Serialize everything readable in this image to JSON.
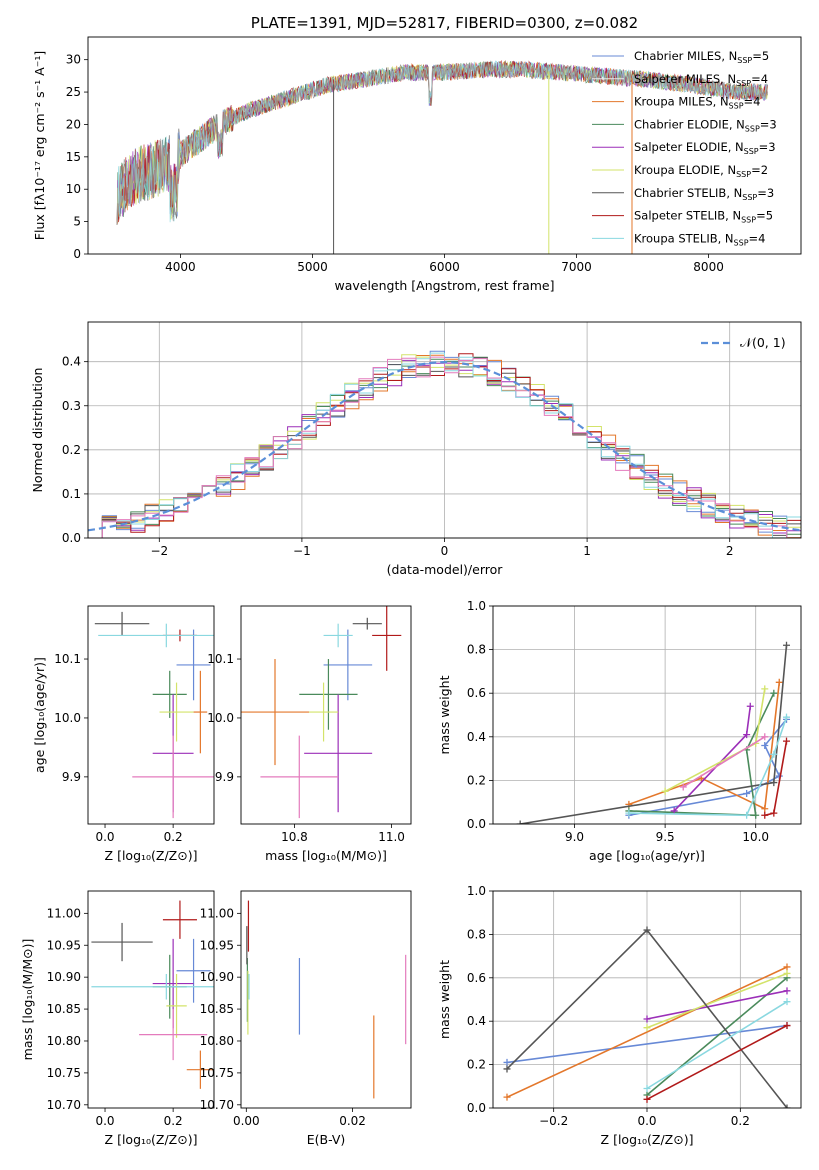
{
  "chart_data": [
    {
      "id": "spectrum",
      "type": "line",
      "title": "PLATE=1391, MJD=52817, FIBERID=0300, z=0.082",
      "xlabel": "wavelength [Angstrom, rest frame]",
      "ylabel": "Flux [fλ10⁻¹⁷ erg cm⁻² s⁻¹ A⁻¹]",
      "xlim": [
        3300,
        8700
      ],
      "ylim": [
        0,
        33.5
      ],
      "xticks": [
        4000,
        5000,
        6000,
        7000,
        8000
      ],
      "yticks": [
        0,
        5,
        10,
        15,
        20,
        25,
        30
      ],
      "grid": false,
      "legend_position": "upper-right",
      "legend": [
        {
          "label": "Chabrier MILES, N",
          "sub": "SSP",
          "tail": "=5",
          "color": "#6789d6"
        },
        {
          "label": "Salpeter MILES, N",
          "sub": "SSP",
          "tail": "=4",
          "color": "#e7e7e7"
        },
        {
          "label": "Kroupa MILES, N",
          "sub": "SSP",
          "tail": "=4",
          "color": "#e3772b"
        },
        {
          "label": "Chabrier ELODIE, N",
          "sub": "SSP",
          "tail": "=3",
          "color": "#4a8a5b"
        },
        {
          "label": "Salpeter ELODIE, N",
          "sub": "SSP",
          "tail": "=3",
          "color": "#9b2fb8"
        },
        {
          "label": "Kroupa ELODIE, N",
          "sub": "SSP",
          "tail": "=2",
          "color": "#d3e36a"
        },
        {
          "label": "Chabrier STELIB, N",
          "sub": "SSP",
          "tail": "=3",
          "color": "#555555"
        },
        {
          "label": "Salpeter STELIB, N",
          "sub": "SSP",
          "tail": "=5",
          "color": "#b11a1a"
        },
        {
          "label": "Kroupa STELIB, N",
          "sub": "SSP",
          "tail": "=4",
          "color": "#8ad8e0"
        }
      ],
      "continuum": [
        [
          3520,
          9
        ],
        [
          3650,
          12
        ],
        [
          3800,
          13
        ],
        [
          3950,
          14.5
        ],
        [
          4100,
          17
        ],
        [
          4300,
          20
        ],
        [
          4500,
          22
        ],
        [
          4800,
          24
        ],
        [
          5100,
          26
        ],
        [
          5400,
          27
        ],
        [
          5700,
          28
        ],
        [
          6000,
          28
        ],
        [
          6300,
          28.5
        ],
        [
          6600,
          28.5
        ],
        [
          6900,
          28
        ],
        [
          7200,
          27.5
        ],
        [
          7500,
          27
        ],
        [
          7900,
          26
        ],
        [
          8200,
          25
        ],
        [
          8450,
          25
        ]
      ],
      "features": [
        {
          "x": 5160,
          "y": 0
        },
        {
          "x": 6790,
          "y": 0
        },
        {
          "x": 7420,
          "y": 0
        }
      ]
    },
    {
      "id": "residuals",
      "type": "histogram",
      "xlabel": "(data-model)/error",
      "ylabel": "Normed distribution",
      "xlim": [
        -2.5,
        2.5
      ],
      "ylim": [
        0,
        0.49
      ],
      "xticks": [
        -2,
        -1,
        0,
        1,
        2
      ],
      "yticks": [
        0,
        0.1,
        0.2,
        0.3,
        0.4
      ],
      "grid": true,
      "legend": [
        {
          "label": "𝒩(0, 1)",
          "color": "#5b8fd8",
          "style": "dashed"
        }
      ],
      "legend_position": "upper-right",
      "bin_width": 0.1,
      "series_colors": [
        "#6789d6",
        "#e3772b",
        "#4a8a5b",
        "#9b2fb8",
        "#d3e36a",
        "#555555",
        "#b11a1a",
        "#8ad8e0",
        "#e47bbd"
      ]
    },
    {
      "id": "age-vs-Z",
      "type": "errorbar",
      "xlabel": "Z [log₁₀(Z/Z⊙)]",
      "ylabel": "age  [log₁₀(age/yr)]",
      "xlim": [
        -0.05,
        0.32
      ],
      "ylim": [
        9.82,
        10.19
      ],
      "xticks": [
        0.0,
        0.2
      ],
      "yticks": [
        9.9,
        10.0,
        10.1
      ],
      "points": [
        {
          "x": 0.26,
          "y": 10.09,
          "xerr": 0.05,
          "yerr": 0.06,
          "color": "#6789d6"
        },
        {
          "x": 0.28,
          "y": 10.01,
          "xerr": 0.02,
          "yerr": 0.07,
          "color": "#e3772b"
        },
        {
          "x": 0.19,
          "y": 10.04,
          "xerr": 0.05,
          "yerr": 0.04,
          "color": "#4a8a5b"
        },
        {
          "x": 0.2,
          "y": 9.94,
          "xerr": 0.06,
          "yerr": 0.1,
          "color": "#9b2fb8"
        },
        {
          "x": 0.21,
          "y": 10.01,
          "xerr": 0.05,
          "yerr": 0.05,
          "color": "#d3e36a"
        },
        {
          "x": 0.05,
          "y": 10.16,
          "xerr": 0.08,
          "yerr": 0.02,
          "color": "#555555"
        },
        {
          "x": 0.22,
          "y": 10.14,
          "xerr": 0.05,
          "yerr": 0.01,
          "color": "#b11a1a"
        },
        {
          "x": 0.18,
          "y": 10.14,
          "xerr": 0.2,
          "yerr": 0.02,
          "color": "#8ad8e0"
        },
        {
          "x": 0.2,
          "y": 9.9,
          "xerr": 0.12,
          "yerr": 0.07,
          "color": "#e47bbd"
        }
      ]
    },
    {
      "id": "age-vs-mass",
      "type": "errorbar",
      "xlabel": "mass [log₁₀(M/M⊙)]",
      "ylabel": "",
      "xlim": [
        10.69,
        11.04
      ],
      "ylim": [
        9.82,
        10.19
      ],
      "xticks": [
        10.8,
        11.0
      ],
      "yticks": [
        9.9,
        10.0,
        10.1
      ],
      "points": [
        {
          "x": 10.91,
          "y": 10.09,
          "xerr": 0.05,
          "yerr": 0.06,
          "color": "#6789d6"
        },
        {
          "x": 10.76,
          "y": 10.01,
          "xerr": 0.07,
          "yerr": 0.09,
          "color": "#e3772b"
        },
        {
          "x": 10.87,
          "y": 10.04,
          "xerr": 0.06,
          "yerr": 0.06,
          "color": "#4a8a5b"
        },
        {
          "x": 10.89,
          "y": 9.94,
          "xerr": 0.07,
          "yerr": 0.1,
          "color": "#9b2fb8"
        },
        {
          "x": 10.86,
          "y": 10.01,
          "xerr": 0.03,
          "yerr": 0.05,
          "color": "#d3e36a"
        },
        {
          "x": 10.95,
          "y": 10.16,
          "xerr": 0.03,
          "yerr": 0.01,
          "color": "#555555"
        },
        {
          "x": 10.99,
          "y": 10.14,
          "xerr": 0.03,
          "yerr": 0.06,
          "color": "#b11a1a"
        },
        {
          "x": 10.89,
          "y": 10.14,
          "xerr": 0.03,
          "yerr": 0.02,
          "color": "#8ad8e0"
        },
        {
          "x": 10.81,
          "y": 9.9,
          "xerr": 0.08,
          "yerr": 0.07,
          "color": "#e47bbd"
        }
      ]
    },
    {
      "id": "mass-weight-vs-age",
      "type": "line",
      "xlabel": "age  [log₁₀(age/yr)]",
      "ylabel": "mass weight",
      "xlim": [
        8.55,
        10.25
      ],
      "ylim": [
        0,
        1.0
      ],
      "xticks": [
        9.0,
        9.5,
        10.0
      ],
      "yticks": [
        0,
        0.2,
        0.4,
        0.6,
        0.8,
        1.0
      ],
      "grid": true,
      "series": [
        {
          "color": "#6789d6",
          "points": [
            [
              9.3,
              0.04
            ],
            [
              9.95,
              0.14
            ],
            [
              10.13,
              0.22
            ],
            [
              10.05,
              0.36
            ],
            [
              10.17,
              0.48
            ]
          ]
        },
        {
          "color": "#e3772b",
          "points": [
            [
              9.3,
              0.09
            ],
            [
              9.7,
              0.21
            ],
            [
              10.05,
              0.07
            ],
            [
              10.13,
              0.65
            ]
          ]
        },
        {
          "color": "#4a8a5b",
          "points": [
            [
              9.3,
              0.06
            ],
            [
              10.0,
              0.04
            ],
            [
              9.95,
              0.34
            ],
            [
              10.1,
              0.6
            ]
          ]
        },
        {
          "color": "#9b2fb8",
          "points": [
            [
              9.55,
              0.06
            ],
            [
              9.95,
              0.41
            ],
            [
              9.97,
              0.54
            ]
          ]
        },
        {
          "color": "#d3e36a",
          "points": [
            [
              9.5,
              0.15
            ],
            [
              10.0,
              0.37
            ],
            [
              10.05,
              0.62
            ]
          ]
        },
        {
          "color": "#555555",
          "points": [
            [
              8.7,
              0.0
            ],
            [
              10.1,
              0.19
            ],
            [
              10.17,
              0.82
            ]
          ]
        },
        {
          "color": "#b11a1a",
          "points": [
            [
              10.05,
              0.04
            ],
            [
              10.1,
              0.05
            ],
            [
              10.17,
              0.38
            ]
          ]
        },
        {
          "color": "#8ad8e0",
          "points": [
            [
              9.3,
              0.05
            ],
            [
              9.95,
              0.04
            ],
            [
              10.1,
              0.32
            ],
            [
              10.17,
              0.49
            ]
          ]
        },
        {
          "color": "#e47bbd",
          "points": [
            [
              9.6,
              0.17
            ],
            [
              10.05,
              0.4
            ]
          ]
        }
      ]
    },
    {
      "id": "mass-vs-Z",
      "type": "errorbar",
      "xlabel": "Z [log₁₀(Z/Z⊙)]",
      "ylabel": "mass [log₁₀(M/M⊙)]",
      "xlim": [
        -0.05,
        0.32
      ],
      "ylim": [
        10.695,
        11.035
      ],
      "xticks": [
        0.0,
        0.2
      ],
      "yticks": [
        10.7,
        10.75,
        10.8,
        10.85,
        10.9,
        10.95,
        11.0
      ],
      "points": [
        {
          "x": 0.26,
          "y": 10.91,
          "xerr": 0.05,
          "yerr": 0.05,
          "color": "#6789d6"
        },
        {
          "x": 0.28,
          "y": 10.755,
          "xerr": 0.04,
          "yerr": 0.03,
          "color": "#e3772b"
        },
        {
          "x": 0.19,
          "y": 10.885,
          "xerr": 0.05,
          "yerr": 0.05,
          "color": "#4a8a5b"
        },
        {
          "x": 0.2,
          "y": 10.89,
          "xerr": 0.06,
          "yerr": 0.07,
          "color": "#9b2fb8"
        },
        {
          "x": 0.21,
          "y": 10.855,
          "xerr": 0.03,
          "yerr": 0.05,
          "color": "#d3e36a"
        },
        {
          "x": 0.05,
          "y": 10.955,
          "xerr": 0.09,
          "yerr": 0.03,
          "color": "#555555"
        },
        {
          "x": 0.22,
          "y": 10.99,
          "xerr": 0.05,
          "yerr": 0.03,
          "color": "#b11a1a"
        },
        {
          "x": 0.18,
          "y": 10.885,
          "xerr": 0.22,
          "yerr": 0.02,
          "color": "#8ad8e0"
        },
        {
          "x": 0.2,
          "y": 10.81,
          "xerr": 0.1,
          "yerr": 0.04,
          "color": "#e47bbd"
        }
      ]
    },
    {
      "id": "mass-vs-EBV",
      "type": "errorbar",
      "xlabel": "E(B-V)",
      "ylabel": "",
      "xlim": [
        -0.001,
        0.031
      ],
      "ylim": [
        10.695,
        11.035
      ],
      "xticks": [
        0.0,
        0.02
      ],
      "yticks": [
        10.7,
        10.75,
        10.8,
        10.85,
        10.9,
        10.95,
        11.0
      ],
      "points": [
        {
          "x": 0.01,
          "y": 10.87,
          "xerr": 0,
          "yerr": 0.06,
          "color": "#6789d6"
        },
        {
          "x": 0.024,
          "y": 10.775,
          "xerr": 0,
          "yerr": 0.065,
          "color": "#e3772b"
        },
        {
          "x": 0.0002,
          "y": 10.88,
          "xerr": 0,
          "yerr": 0.05,
          "color": "#4a8a5b"
        },
        {
          "x": 0.0003,
          "y": 10.86,
          "xerr": 0,
          "yerr": 0.05,
          "color": "#d3e36a"
        },
        {
          "x": 0.0001,
          "y": 10.95,
          "xerr": 0,
          "yerr": 0.03,
          "color": "#555555"
        },
        {
          "x": 0.0004,
          "y": 10.98,
          "xerr": 0,
          "yerr": 0.04,
          "color": "#b11a1a"
        },
        {
          "x": 0.0005,
          "y": 10.885,
          "xerr": 0,
          "yerr": 0.02,
          "color": "#8ad8e0"
        },
        {
          "x": 0.03,
          "y": 10.865,
          "xerr": 0,
          "yerr": 0.07,
          "color": "#e47bbd"
        }
      ]
    },
    {
      "id": "mass-weight-vs-Z",
      "type": "line",
      "xlabel": "Z [log₁₀(Z/Z⊙)]",
      "ylabel": "mass weight",
      "xlim": [
        -0.33,
        0.33
      ],
      "ylim": [
        0,
        1.0
      ],
      "xticks": [
        -0.2,
        0.0,
        0.2
      ],
      "yticks": [
        0,
        0.2,
        0.4,
        0.6,
        0.8,
        1.0
      ],
      "grid": true,
      "series": [
        {
          "color": "#6789d6",
          "points": [
            [
              -0.3,
              0.21
            ],
            [
              0.3,
              0.38
            ]
          ]
        },
        {
          "color": "#e3772b",
          "points": [
            [
              -0.3,
              0.05
            ],
            [
              0.3,
              0.65
            ]
          ]
        },
        {
          "color": "#4a8a5b",
          "points": [
            [
              0.0,
              0.06
            ],
            [
              0.3,
              0.6
            ]
          ]
        },
        {
          "color": "#9b2fb8",
          "points": [
            [
              0.0,
              0.41
            ],
            [
              0.3,
              0.54
            ]
          ]
        },
        {
          "color": "#d3e36a",
          "points": [
            [
              0.0,
              0.37
            ],
            [
              0.3,
              0.62
            ]
          ]
        },
        {
          "color": "#555555",
          "points": [
            [
              -0.3,
              0.18
            ],
            [
              0.0,
              0.82
            ],
            [
              0.3,
              0.0
            ]
          ]
        },
        {
          "color": "#b11a1a",
          "points": [
            [
              0.0,
              0.04
            ],
            [
              0.3,
              0.38
            ]
          ]
        },
        {
          "color": "#8ad8e0",
          "points": [
            [
              0.0,
              0.09
            ],
            [
              0.3,
              0.49
            ]
          ]
        }
      ]
    }
  ]
}
